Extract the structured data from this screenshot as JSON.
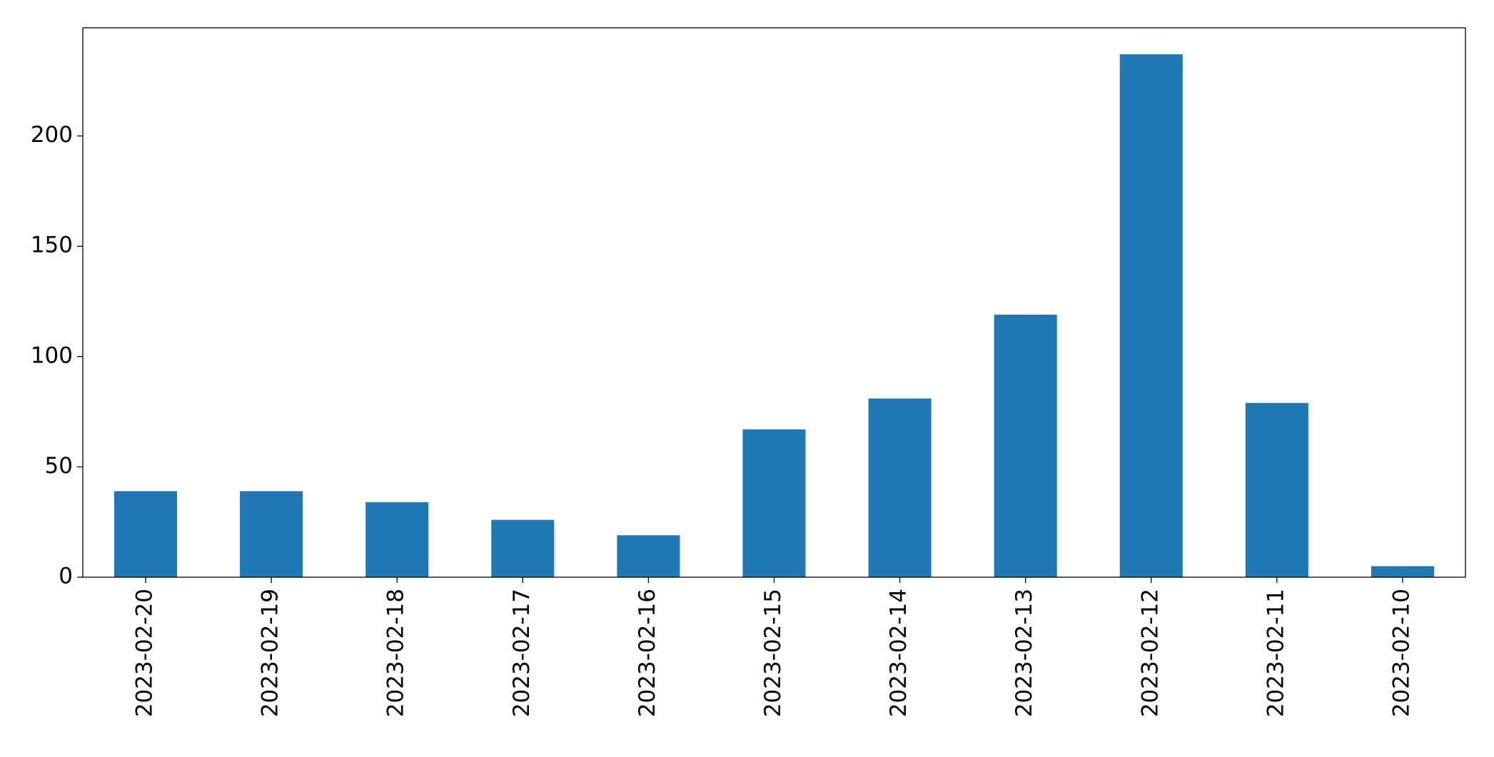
{
  "chart_data": {
    "type": "bar",
    "categories": [
      "2023-02-20",
      "2023-02-19",
      "2023-02-18",
      "2023-02-17",
      "2023-02-16",
      "2023-02-15",
      "2023-02-14",
      "2023-02-13",
      "2023-02-12",
      "2023-02-11",
      "2023-02-10"
    ],
    "values": [
      39,
      39,
      34,
      26,
      19,
      67,
      81,
      119,
      237,
      79,
      5
    ],
    "color": "#1f77b4",
    "ylim": [
      0,
      249
    ],
    "yticks": [
      0,
      50,
      100,
      150,
      200
    ],
    "grid": false
  }
}
